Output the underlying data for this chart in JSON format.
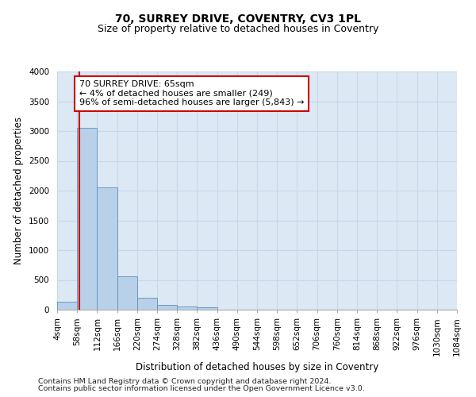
{
  "title1": "70, SURREY DRIVE, COVENTRY, CV3 1PL",
  "title2": "Size of property relative to detached houses in Coventry",
  "xlabel": "Distribution of detached houses by size in Coventry",
  "ylabel": "Number of detached properties",
  "footnote1": "Contains HM Land Registry data © Crown copyright and database right 2024.",
  "footnote2": "Contains public sector information licensed under the Open Government Licence v3.0.",
  "annotation_title": "70 SURREY DRIVE: 65sqm",
  "annotation_line1": "← 4% of detached houses are smaller (249)",
  "annotation_line2": "96% of semi-detached houses are larger (5,843) →",
  "bin_edges": [
    4,
    58,
    112,
    166,
    220,
    274,
    328,
    382,
    436,
    490,
    544,
    598,
    652,
    706,
    760,
    814,
    868,
    922,
    976,
    1030,
    1084
  ],
  "bar_heights": [
    130,
    3060,
    2060,
    560,
    200,
    75,
    50,
    40,
    0,
    0,
    0,
    0,
    0,
    0,
    0,
    0,
    0,
    0,
    0,
    0
  ],
  "bar_color": "#b8d0e8",
  "bar_edge_color": "#6090c0",
  "grid_color": "#c8d8eb",
  "property_size": 65,
  "red_line_color": "#cc0000",
  "annotation_box_color": "#cc0000",
  "ylim": [
    0,
    4000
  ],
  "yticks": [
    0,
    500,
    1000,
    1500,
    2000,
    2500,
    3000,
    3500,
    4000
  ],
  "bg_color": "#dce8f4",
  "title1_fontsize": 10,
  "title2_fontsize": 9,
  "axis_label_fontsize": 8.5,
  "tick_fontsize": 7.5,
  "annotation_fontsize": 8,
  "footnote_fontsize": 6.8
}
